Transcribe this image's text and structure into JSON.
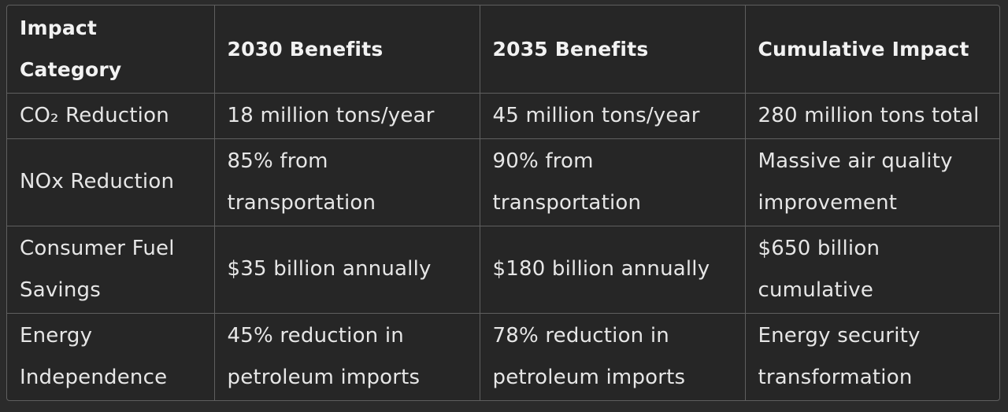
{
  "table": {
    "headers": [
      "Impact Category",
      "2030 Benefits",
      "2035 Benefits",
      "Cumulative Impact"
    ],
    "rows": [
      [
        "CO₂ Reduction",
        "18 million tons/year",
        "45 million tons/year",
        "280 million tons total"
      ],
      [
        "NOx Reduction",
        "85% from transportation",
        "90% from transportation",
        "Massive air quality improvement"
      ],
      [
        "Consumer Fuel Savings",
        "$35 billion annually",
        "$180 billion annually",
        "$650 billion cumulative"
      ],
      [
        "Energy Independence",
        "45% reduction in petroleum imports",
        "78% reduction in petroleum imports",
        "Energy security transformation"
      ]
    ]
  }
}
